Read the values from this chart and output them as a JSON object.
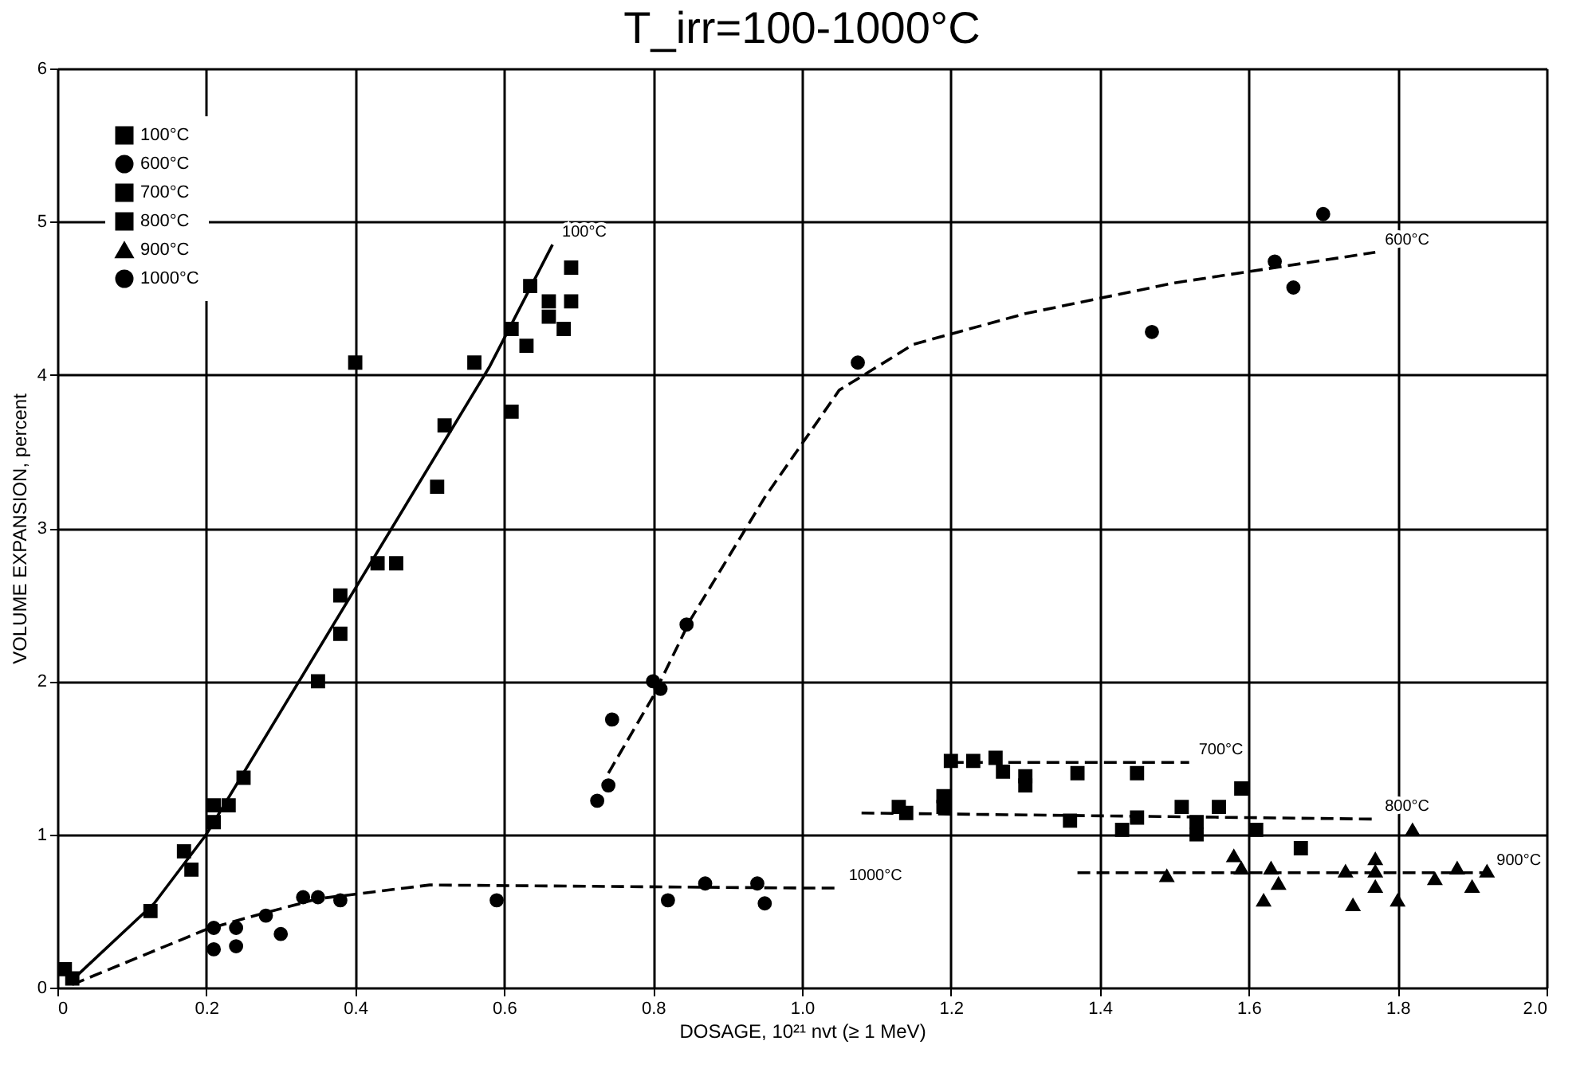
{
  "chart_data": {
    "type": "scatter",
    "title": "T_irr=100-1000°C",
    "xlabel": "DOSAGE, 10²¹ nvt (≥ 1 MeV)",
    "ylabel": "VOLUME EXPANSION, percent",
    "xlim": [
      0,
      2.0
    ],
    "ylim": [
      0,
      6
    ],
    "xticks": [
      0,
      0.2,
      0.4,
      0.6,
      0.8,
      {
        "value": 1,
        "label": "1.0"
      },
      1.2,
      1.4,
      1.6,
      1.8,
      {
        "value": 2,
        "label": "2.0"
      }
    ],
    "yticks": [
      0,
      1,
      2,
      3,
      4,
      5,
      6
    ],
    "grid": true,
    "legend": "top left",
    "series": [
      {
        "name": "100°C",
        "color": "#000000",
        "marker": "square",
        "x": [
          0.01,
          0.02,
          0.125,
          0.17,
          0.18,
          0.21,
          0.21,
          0.23,
          0.25,
          0.35,
          0.38,
          0.38,
          0.43,
          0.455,
          0.51,
          0.52,
          0.61,
          0.4,
          0.56,
          0.61,
          0.63,
          0.635,
          0.66,
          0.66,
          0.68,
          0.69,
          0.69
        ],
        "values": [
          0.12,
          0.06,
          0.5,
          0.89,
          0.77,
          1.08,
          1.19,
          1.19,
          1.37,
          2.0,
          2.31,
          2.56,
          2.77,
          2.77,
          3.27,
          3.67,
          3.76,
          4.08,
          4.08,
          4.3,
          4.19,
          4.58,
          4.48,
          4.38,
          4.3,
          4.48,
          4.7
        ]
      },
      {
        "name": "600°C",
        "color": "#000000",
        "marker": "circle",
        "x": [
          0.725,
          0.74,
          0.745,
          0.8,
          0.81,
          0.845,
          1.075,
          1.47,
          1.635,
          1.66,
          1.7
        ],
        "values": [
          1.22,
          1.32,
          1.75,
          2.0,
          1.95,
          2.37,
          4.08,
          4.28,
          4.74,
          4.57,
          5.05
        ]
      },
      {
        "name": "700°C",
        "color": "#000000",
        "marker": "square",
        "x": [
          1.2,
          1.23,
          1.26,
          1.27,
          1.3,
          1.3,
          1.37,
          1.45,
          1.59
        ],
        "values": [
          1.48,
          1.48,
          1.5,
          1.41,
          1.38,
          1.32,
          1.4,
          1.4,
          1.3
        ]
      },
      {
        "name": "800°C",
        "color": "#000000",
        "marker": "square",
        "x": [
          1.13,
          1.14,
          1.19,
          1.19,
          1.36,
          1.43,
          1.45,
          1.51,
          1.53,
          1.53,
          1.56,
          1.61,
          1.67
        ],
        "values": [
          1.18,
          1.14,
          1.25,
          1.18,
          1.09,
          1.03,
          1.11,
          1.18,
          1.08,
          1.0,
          1.18,
          1.03,
          0.91
        ]
      },
      {
        "name": "900°C",
        "color": "#000000",
        "marker": "triangle",
        "x": [
          1.49,
          1.58,
          1.59,
          1.62,
          1.63,
          1.64,
          1.73,
          1.74,
          1.77,
          1.77,
          1.77,
          1.8,
          1.82,
          1.85,
          1.88,
          1.9,
          1.92
        ],
        "values": [
          0.73,
          0.86,
          0.78,
          0.57,
          0.78,
          0.68,
          0.76,
          0.54,
          0.84,
          0.76,
          0.66,
          0.57,
          1.03,
          0.71,
          0.78,
          0.66,
          0.76
        ]
      },
      {
        "name": "1000°C",
        "color": "#000000",
        "marker": "circle",
        "x": [
          0.21,
          0.21,
          0.24,
          0.24,
          0.28,
          0.3,
          0.33,
          0.35,
          0.38,
          0.59,
          0.82,
          0.87,
          0.94,
          0.95
        ],
        "values": [
          0.39,
          0.25,
          0.39,
          0.27,
          0.47,
          0.35,
          0.59,
          0.59,
          0.57,
          0.57,
          0.57,
          0.68,
          0.68,
          0.55
        ]
      },
      {
        "type": "line",
        "name": "100°C",
        "color": "#000000",
        "line_style": "solid",
        "x": [
          0.02,
          0.13,
          0.2,
          0.58,
          0.665
        ],
        "values": [
          0.05,
          0.55,
          1.0,
          4.05,
          4.85
        ]
      },
      {
        "type": "line",
        "name": "600°C",
        "color": "#000000",
        "line_style": "dashed",
        "x": [
          0.74,
          0.8,
          0.85,
          0.95,
          1.05,
          1.15,
          1.3,
          1.5,
          1.77
        ],
        "values": [
          1.4,
          1.9,
          2.4,
          3.2,
          3.9,
          4.2,
          4.4,
          4.6,
          4.8
        ]
      },
      {
        "type": "line",
        "name": "1000°C",
        "color": "#000000",
        "line_style": "dashed",
        "x": [
          0.02,
          0.2,
          0.25,
          0.35,
          0.5,
          1.0,
          1.05
        ],
        "values": [
          0.02,
          0.38,
          0.45,
          0.58,
          0.67,
          0.65,
          0.65
        ]
      },
      {
        "type": "line",
        "name": "700°C",
        "color": "#000000",
        "line_style": "dashed",
        "x": [
          1.2,
          1.52
        ],
        "values": [
          1.47,
          1.47
        ]
      },
      {
        "type": "line",
        "name": "800°C",
        "color": "#000000",
        "line_style": "dashed",
        "x": [
          1.08,
          1.77
        ],
        "values": [
          1.14,
          1.1
        ]
      },
      {
        "type": "line",
        "name": "900°C",
        "color": "#000000",
        "line_style": "dashed",
        "x": [
          1.37,
          1.92
        ],
        "values": [
          0.75,
          0.75
        ]
      }
    ]
  }
}
